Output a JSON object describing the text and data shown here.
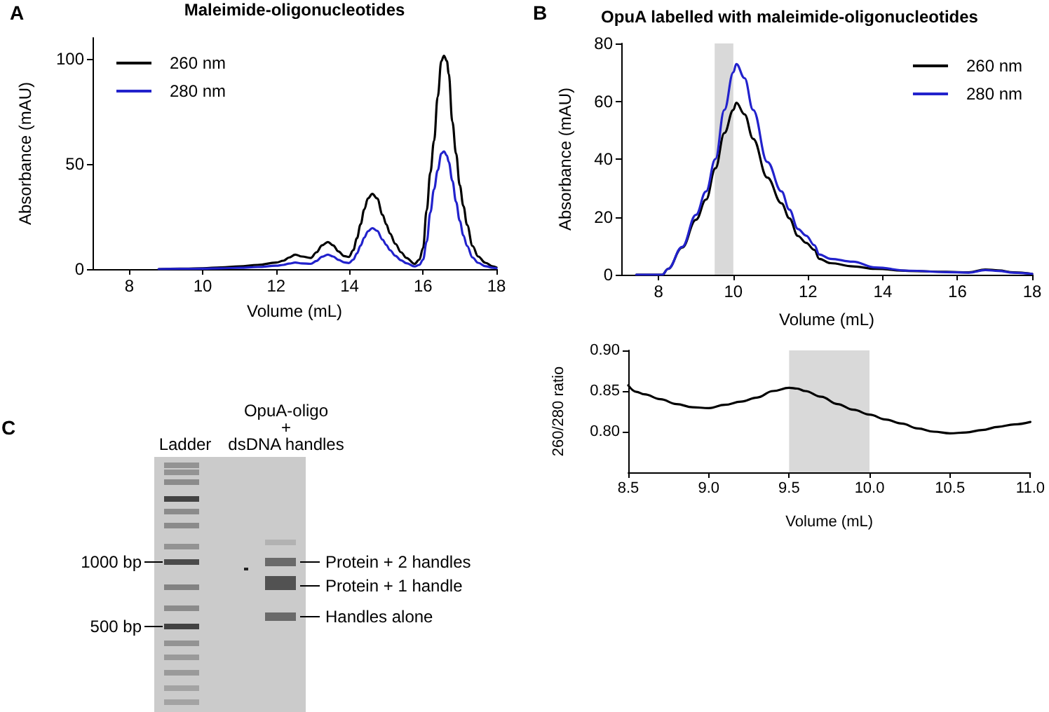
{
  "chart_data": [
    {
      "type": "line",
      "title": "Maleimide-oligonucleotides",
      "xlabel": "Volume (mL)",
      "ylabel": "Absorbance (mAU)",
      "annotations": [
        "A"
      ],
      "x": [
        8.8,
        9.5,
        10,
        10.5,
        11,
        11.5,
        12,
        12.2,
        12.35,
        12.52,
        12.7,
        12.94,
        13.1,
        13.25,
        13.41,
        13.55,
        13.7,
        13.85,
        13.98,
        14.1,
        14.2,
        14.3,
        14.4,
        14.5,
        14.62,
        14.75,
        14.9,
        15.0,
        15.1,
        15.25,
        15.4,
        15.55,
        15.77,
        15.9,
        16.0,
        16.1,
        16.2,
        16.3,
        16.4,
        16.5,
        16.57,
        16.65,
        16.7,
        16.8,
        16.9,
        17.0,
        17.1,
        17.2,
        17.35,
        17.5,
        17.7,
        17.9,
        18.0
      ],
      "series": [
        {
          "name": "260 nm",
          "color": "#000000",
          "values": [
            0,
            0.2,
            0.4,
            0.8,
            1.3,
            2.0,
            3.1,
            4.0,
            5.5,
            6.9,
            6.0,
            5.3,
            8.0,
            11.3,
            12.9,
            11.3,
            8.4,
            6.2,
            5.8,
            9,
            14.7,
            21.3,
            28.4,
            33.6,
            35.8,
            33.6,
            25.8,
            21.3,
            16.9,
            12,
            8,
            5.3,
            2.5,
            4.5,
            10,
            28,
            46,
            61,
            82,
            99,
            101.5,
            99,
            93,
            70,
            55,
            40,
            30,
            21,
            11,
            6,
            3,
            1.3,
            0.8
          ]
        },
        {
          "name": "280 nm",
          "color": "#2222cc",
          "values": [
            0,
            0.1,
            0.2,
            0.4,
            0.6,
            1.0,
            1.6,
            2.0,
            2.6,
            3.1,
            2.7,
            2.5,
            3.9,
            5.9,
            6.9,
            6.0,
            4.4,
            3.2,
            2.9,
            4.5,
            7.5,
            11.2,
            15,
            18,
            19.5,
            18.2,
            14,
            11.5,
            9,
            6.3,
            4.2,
            2.8,
            1.3,
            2.0,
            4.5,
            13,
            27,
            38,
            47,
            55,
            56,
            54,
            51,
            42,
            32,
            23,
            16,
            11,
            5.5,
            3,
            1.4,
            0.6,
            0.4
          ]
        }
      ],
      "xlim": [
        7,
        18
      ],
      "xticks": [
        8,
        10,
        12,
        14,
        16,
        18
      ],
      "ylim": [
        0,
        110
      ],
      "yticks": [
        0,
        50,
        100
      ],
      "legend": "top left",
      "line_style": "solid"
    },
    {
      "type": "line",
      "title": "OpuA labelled with maleimide-oligonucleotides",
      "xlabel": "Volume (mL)",
      "ylabel": "Absorbance (mAU)",
      "annotations": [
        "B"
      ],
      "x": [
        7.4,
        8.1,
        8.25,
        8.63,
        9.0,
        9.27,
        9.52,
        9.76,
        10.0,
        10.08,
        10.3,
        10.53,
        10.91,
        11.29,
        11.5,
        11.73,
        11.95,
        12.17,
        12.3,
        12.6,
        13.2,
        13.8,
        14.7,
        15.7,
        16.3,
        16.75,
        17.1,
        17.5,
        18.0
      ],
      "series": [
        {
          "name": "260 nm",
          "color": "#000000",
          "values": [
            0,
            0,
            2,
            9.4,
            19,
            26,
            36.8,
            49,
            57,
            59.5,
            55.5,
            47,
            33.6,
            24.7,
            19.5,
            13.4,
            11,
            8.6,
            5.5,
            4,
            2.9,
            2,
            1.3,
            1,
            0.8,
            1.8,
            1.5,
            0.8,
            0.3
          ]
        },
        {
          "name": "280 nm",
          "color": "#2222cc",
          "values": [
            0,
            0,
            2,
            9.6,
            20.7,
            28.8,
            40,
            57,
            70,
            72.9,
            68,
            57,
            39,
            28.8,
            22.5,
            15.8,
            13.5,
            10.2,
            7,
            5.5,
            4.5,
            2.5,
            1.4,
            0.9,
            0.7,
            1.6,
            1.3,
            0.7,
            0.3
          ]
        }
      ],
      "xlim": [
        7,
        18
      ],
      "xticks": [
        8,
        10,
        12,
        14,
        16,
        18
      ],
      "ylim": [
        0,
        80
      ],
      "yticks": [
        0,
        20,
        40,
        60,
        80
      ],
      "bands": [
        {
          "axis": "x",
          "from": 9.5,
          "to": 10.0,
          "color": "#d9d9d9"
        }
      ],
      "legend": "top right",
      "line_style": "solid"
    },
    {
      "type": "line",
      "xlabel": "Volume (mL)",
      "ylabel": "260/280 ratio",
      "x": [
        8.5,
        8.55,
        8.6,
        8.7,
        8.8,
        8.9,
        9.0,
        9.1,
        9.2,
        9.3,
        9.4,
        9.5,
        9.55,
        9.6,
        9.7,
        9.8,
        9.9,
        10.0,
        10.1,
        10.2,
        10.3,
        10.4,
        10.5,
        10.6,
        10.7,
        10.8,
        10.9,
        11.0
      ],
      "series": [
        {
          "color": "#000000",
          "values": [
            0.857,
            0.849,
            0.846,
            0.84,
            0.834,
            0.83,
            0.829,
            0.833,
            0.837,
            0.842,
            0.85,
            0.854,
            0.853,
            0.85,
            0.843,
            0.834,
            0.827,
            0.821,
            0.815,
            0.81,
            0.804,
            0.8,
            0.798,
            0.799,
            0.802,
            0.806,
            0.809,
            0.812
          ]
        }
      ],
      "xlim": [
        8.5,
        11.0
      ],
      "xticks": [
        8.5,
        {
          "value": 9,
          "label": "9.0"
        },
        9.5,
        {
          "value": 10,
          "label": "10.0"
        },
        10.5,
        {
          "value": 11,
          "label": "11.0"
        }
      ],
      "ylim": [
        0.75,
        0.9
      ],
      "yticks": [
        {
          "value": 0.8,
          "label": "0.80"
        },
        0.85,
        {
          "value": 0.9,
          "label": "0.90"
        }
      ],
      "bands": [
        {
          "axis": "x",
          "from": 9.5,
          "to": 10.0,
          "color": "#d9d9d9"
        }
      ],
      "line_style": "solid"
    },
    {
      "type": "other",
      "annotations": [
        "C",
        "Ladder",
        "OpuA-oligo\n+\ndsDNA handles",
        "1000 bp",
        "500 bp",
        "Protein + 2 handles",
        "Protein + 1 handle",
        "Handles alone"
      ]
    }
  ]
}
